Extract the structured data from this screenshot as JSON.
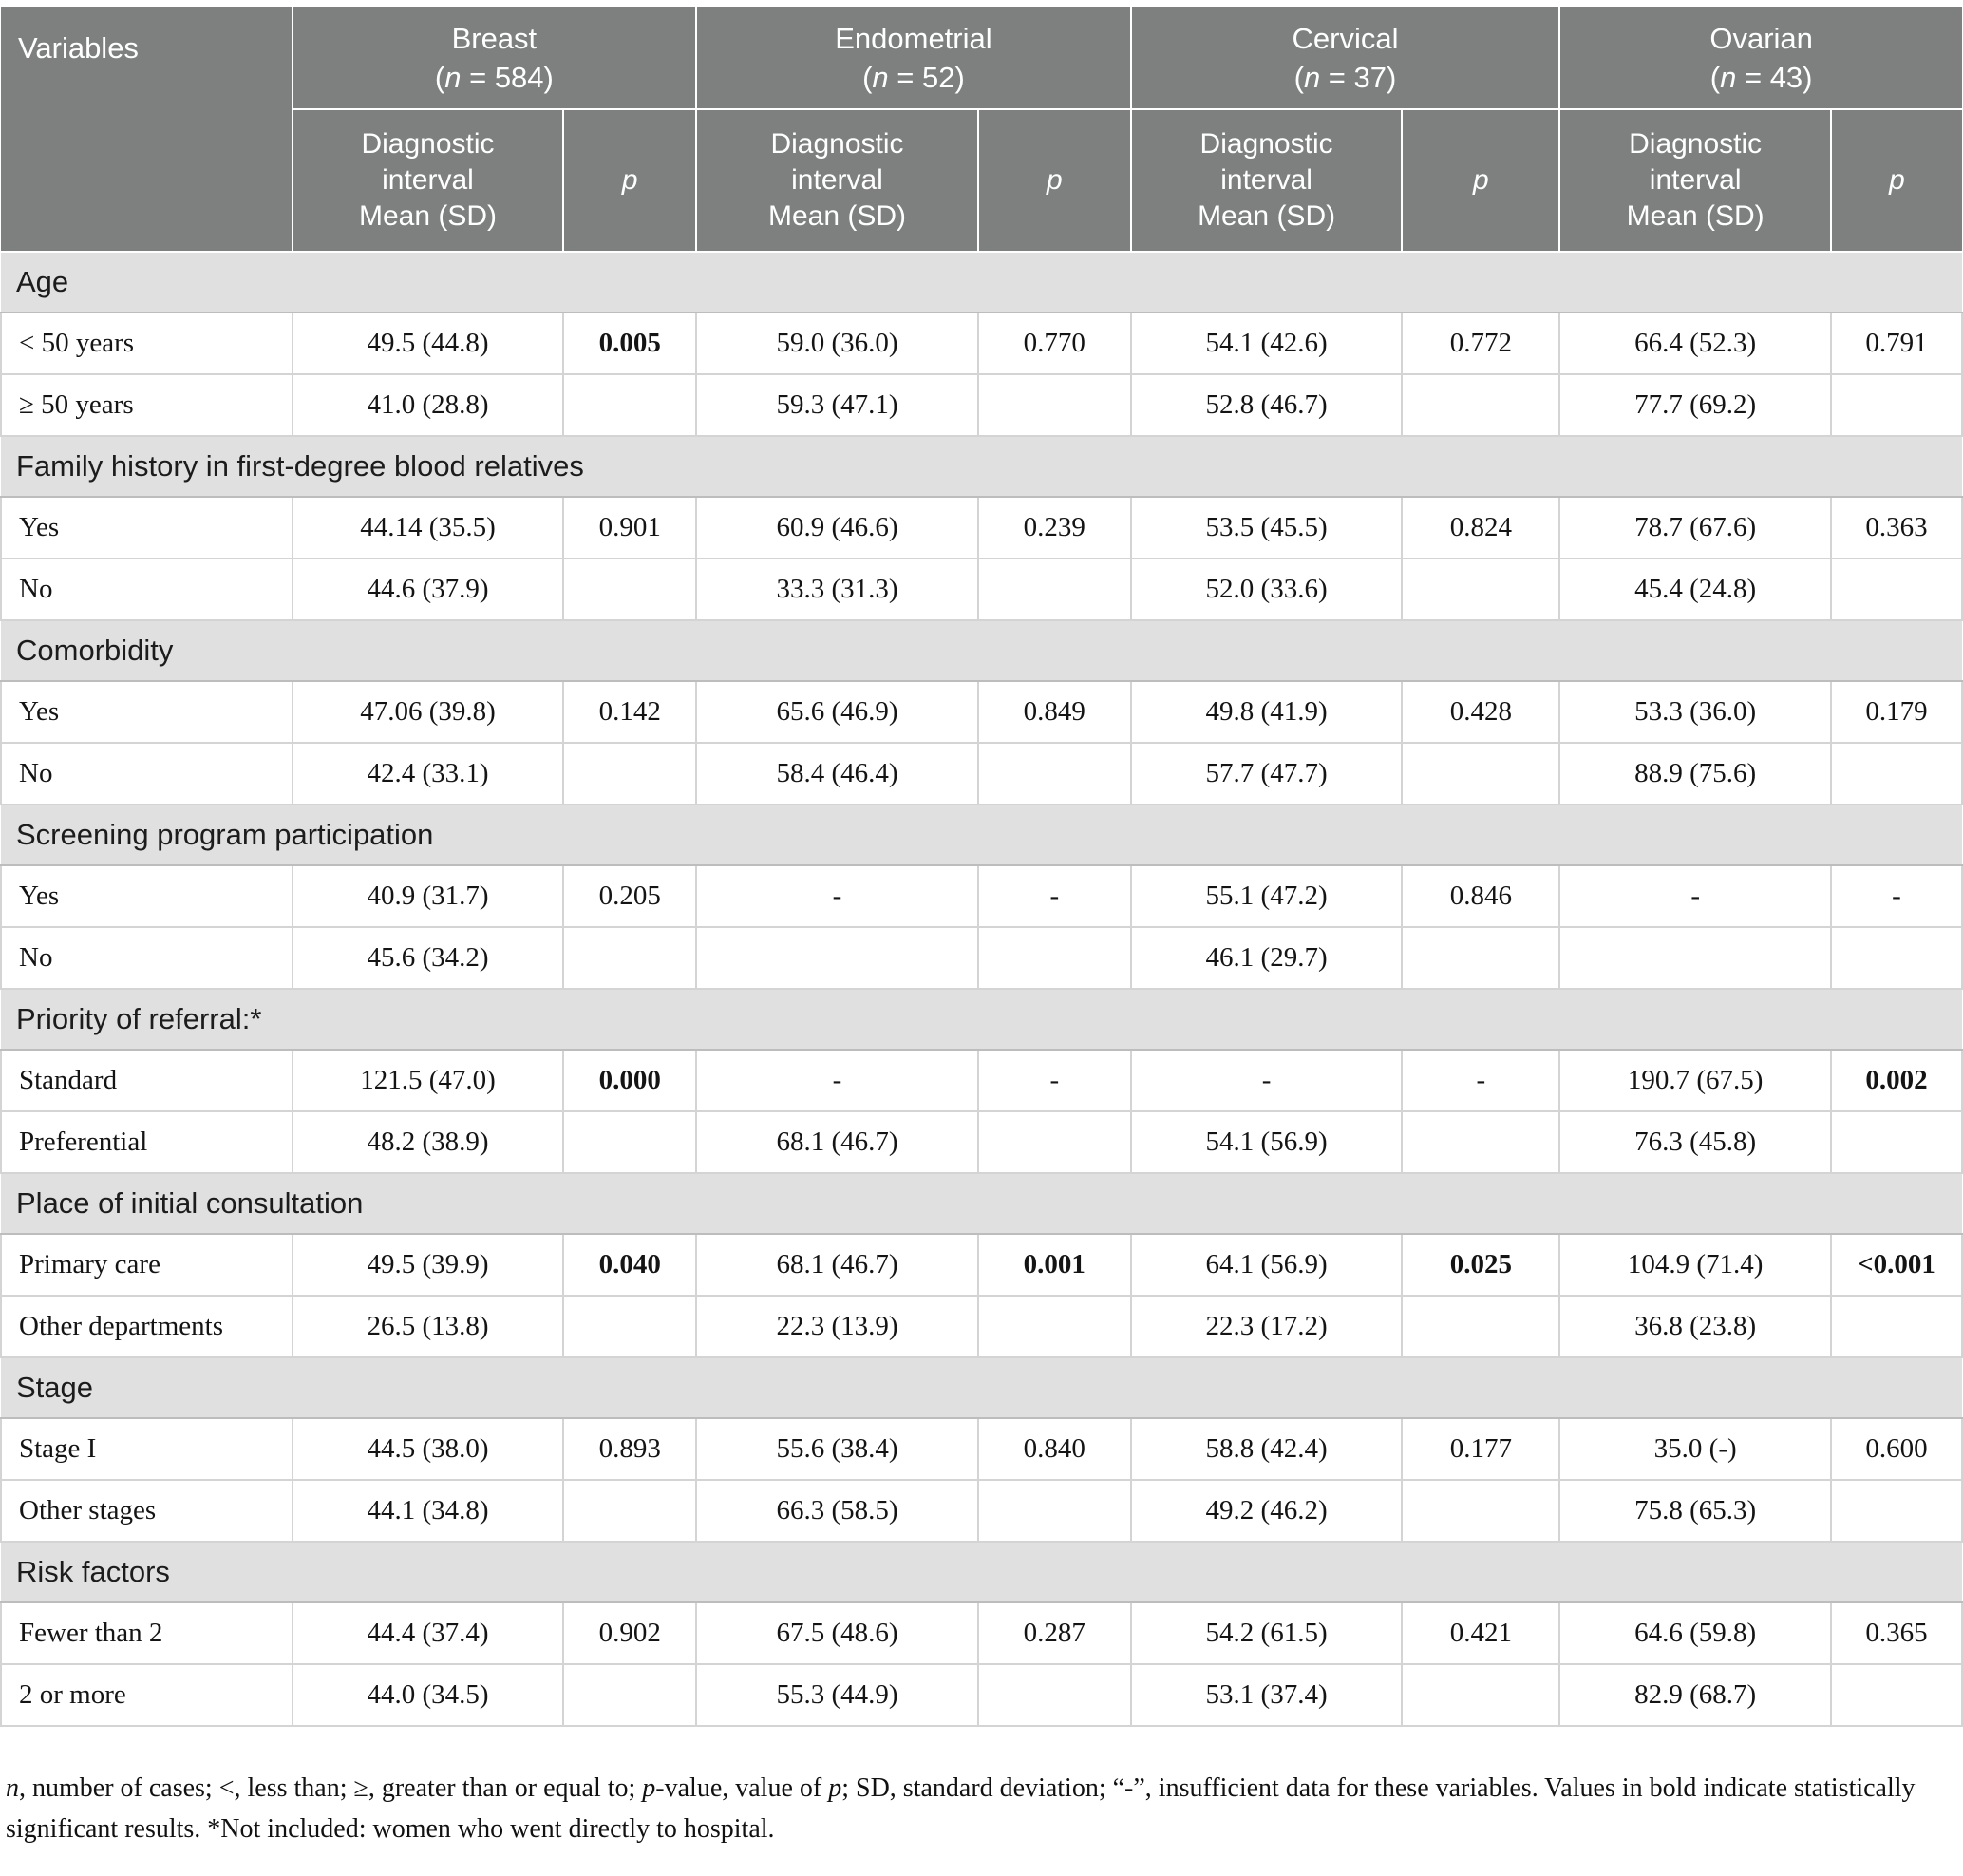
{
  "colors": {
    "header_bg": "#7e8080",
    "header_text": "#ffffff",
    "section_bg": "#e0e0e0",
    "body_bg": "#ffffff"
  },
  "table": {
    "variables_label": "Variables",
    "n_symbol": "n",
    "sub": {
      "di_lines": [
        "Diagnostic",
        "interval",
        "Mean (SD)"
      ],
      "p_label": "p"
    },
    "groups": [
      {
        "name": "Breast",
        "n": "584"
      },
      {
        "name": "Endometrial",
        "n": "52"
      },
      {
        "name": "Cervical",
        "n": "37"
      },
      {
        "name": "Ovarian",
        "n": "43"
      }
    ],
    "sections": [
      {
        "title": "Age",
        "rows": [
          {
            "label": "< 50 years",
            "cells": [
              {
                "t": "49.5 (44.8)"
              },
              {
                "t": "0.005",
                "b": true
              },
              {
                "t": "59.0 (36.0)"
              },
              {
                "t": "0.770"
              },
              {
                "t": "54.1 (42.6)"
              },
              {
                "t": "0.772"
              },
              {
                "t": "66.4 (52.3)"
              },
              {
                "t": "0.791"
              }
            ]
          },
          {
            "label": "≥ 50 years",
            "cells": [
              {
                "t": "41.0 (28.8)"
              },
              {
                "t": ""
              },
              {
                "t": "59.3 (47.1)"
              },
              {
                "t": ""
              },
              {
                "t": "52.8 (46.7)"
              },
              {
                "t": ""
              },
              {
                "t": "77.7 (69.2)"
              },
              {
                "t": ""
              }
            ]
          }
        ]
      },
      {
        "title": "Family history in first-degree blood relatives",
        "rows": [
          {
            "label": "Yes",
            "cells": [
              {
                "t": "44.14 (35.5)"
              },
              {
                "t": "0.901"
              },
              {
                "t": "60.9 (46.6)"
              },
              {
                "t": "0.239"
              },
              {
                "t": "53.5 (45.5)"
              },
              {
                "t": "0.824"
              },
              {
                "t": "78.7 (67.6)"
              },
              {
                "t": "0.363"
              }
            ]
          },
          {
            "label": "No",
            "cells": [
              {
                "t": "44.6 (37.9)"
              },
              {
                "t": ""
              },
              {
                "t": "33.3 (31.3)"
              },
              {
                "t": ""
              },
              {
                "t": "52.0 (33.6)"
              },
              {
                "t": ""
              },
              {
                "t": "45.4 (24.8)"
              },
              {
                "t": ""
              }
            ]
          }
        ]
      },
      {
        "title": "Comorbidity",
        "rows": [
          {
            "label": "Yes",
            "cells": [
              {
                "t": "47.06 (39.8)"
              },
              {
                "t": "0.142"
              },
              {
                "t": "65.6 (46.9)"
              },
              {
                "t": "0.849"
              },
              {
                "t": "49.8 (41.9)"
              },
              {
                "t": "0.428"
              },
              {
                "t": "53.3 (36.0)"
              },
              {
                "t": "0.179"
              }
            ]
          },
          {
            "label": "No",
            "cells": [
              {
                "t": "42.4 (33.1)"
              },
              {
                "t": ""
              },
              {
                "t": "58.4 (46.4)"
              },
              {
                "t": ""
              },
              {
                "t": "57.7 (47.7)"
              },
              {
                "t": ""
              },
              {
                "t": "88.9 (75.6)"
              },
              {
                "t": ""
              }
            ]
          }
        ]
      },
      {
        "title": "Screening program participation",
        "rows": [
          {
            "label": "Yes",
            "cells": [
              {
                "t": "40.9 (31.7)"
              },
              {
                "t": "0.205"
              },
              {
                "t": "-"
              },
              {
                "t": "-"
              },
              {
                "t": "55.1 (47.2)"
              },
              {
                "t": "0.846"
              },
              {
                "t": "-"
              },
              {
                "t": "-"
              }
            ]
          },
          {
            "label": "No",
            "cells": [
              {
                "t": "45.6 (34.2)"
              },
              {
                "t": ""
              },
              {
                "t": ""
              },
              {
                "t": ""
              },
              {
                "t": "46.1 (29.7)"
              },
              {
                "t": ""
              },
              {
                "t": ""
              },
              {
                "t": ""
              }
            ]
          }
        ]
      },
      {
        "title": "Priority of referral:*",
        "rows": [
          {
            "label": "Standard",
            "cells": [
              {
                "t": "121.5 (47.0)"
              },
              {
                "t": "0.000",
                "b": true
              },
              {
                "t": "-"
              },
              {
                "t": "-"
              },
              {
                "t": "-"
              },
              {
                "t": "-"
              },
              {
                "t": "190.7 (67.5)"
              },
              {
                "t": "0.002",
                "b": true
              }
            ]
          },
          {
            "label": "Preferential",
            "cells": [
              {
                "t": "48.2 (38.9)"
              },
              {
                "t": ""
              },
              {
                "t": "68.1 (46.7)"
              },
              {
                "t": ""
              },
              {
                "t": "54.1 (56.9)"
              },
              {
                "t": ""
              },
              {
                "t": "76.3 (45.8)"
              },
              {
                "t": ""
              }
            ]
          }
        ]
      },
      {
        "title": "Place of initial consultation",
        "rows": [
          {
            "label": "Primary care",
            "cells": [
              {
                "t": "49.5 (39.9)"
              },
              {
                "t": "0.040",
                "b": true
              },
              {
                "t": "68.1 (46.7)"
              },
              {
                "t": "0.001",
                "b": true
              },
              {
                "t": "64.1 (56.9)"
              },
              {
                "t": "0.025",
                "b": true
              },
              {
                "t": "104.9 (71.4)"
              },
              {
                "t": "<0.001",
                "b": true
              }
            ]
          },
          {
            "label": "Other departments",
            "cells": [
              {
                "t": "26.5 (13.8)"
              },
              {
                "t": ""
              },
              {
                "t": "22.3 (13.9)"
              },
              {
                "t": ""
              },
              {
                "t": "22.3 (17.2)"
              },
              {
                "t": ""
              },
              {
                "t": "36.8 (23.8)"
              },
              {
                "t": ""
              }
            ]
          }
        ]
      },
      {
        "title": "Stage",
        "rows": [
          {
            "label": "Stage I",
            "cells": [
              {
                "t": "44.5 (38.0)"
              },
              {
                "t": "0.893"
              },
              {
                "t": "55.6 (38.4)"
              },
              {
                "t": "0.840"
              },
              {
                "t": "58.8 (42.4)"
              },
              {
                "t": "0.177"
              },
              {
                "t": "35.0 (-)"
              },
              {
                "t": "0.600"
              }
            ]
          },
          {
            "label": "Other stages",
            "cells": [
              {
                "t": "44.1 (34.8)"
              },
              {
                "t": ""
              },
              {
                "t": "66.3 (58.5)"
              },
              {
                "t": ""
              },
              {
                "t": "49.2 (46.2)"
              },
              {
                "t": ""
              },
              {
                "t": "75.8 (65.3)"
              },
              {
                "t": ""
              }
            ]
          }
        ]
      },
      {
        "title": "Risk factors",
        "rows": [
          {
            "label": "Fewer than 2",
            "cells": [
              {
                "t": "44.4 (37.4)"
              },
              {
                "t": "0.902"
              },
              {
                "t": "67.5 (48.6)"
              },
              {
                "t": "0.287"
              },
              {
                "t": "54.2 (61.5)"
              },
              {
                "t": "0.421"
              },
              {
                "t": "64.6 (59.8)"
              },
              {
                "t": "0.365"
              }
            ]
          },
          {
            "label": "2 or more",
            "cells": [
              {
                "t": "44.0 (34.5)"
              },
              {
                "t": ""
              },
              {
                "t": "55.3 (44.9)"
              },
              {
                "t": ""
              },
              {
                "t": "53.1 (37.4)"
              },
              {
                "t": ""
              },
              {
                "t": "82.9 (68.7)"
              },
              {
                "t": ""
              }
            ]
          }
        ]
      }
    ]
  },
  "footnote": {
    "segments": [
      {
        "t": "n",
        "i": true
      },
      {
        "t": ", number of cases; <, less than; ≥, greater than or equal to; "
      },
      {
        "t": "p",
        "i": true
      },
      {
        "t": "-value, value of "
      },
      {
        "t": "p",
        "i": true
      },
      {
        "t": "; SD, standard deviation; “-”, insufficient data for these variables. Values in bold indicate statistically significant results. *Not included: women who went directly to hospital."
      }
    ]
  }
}
